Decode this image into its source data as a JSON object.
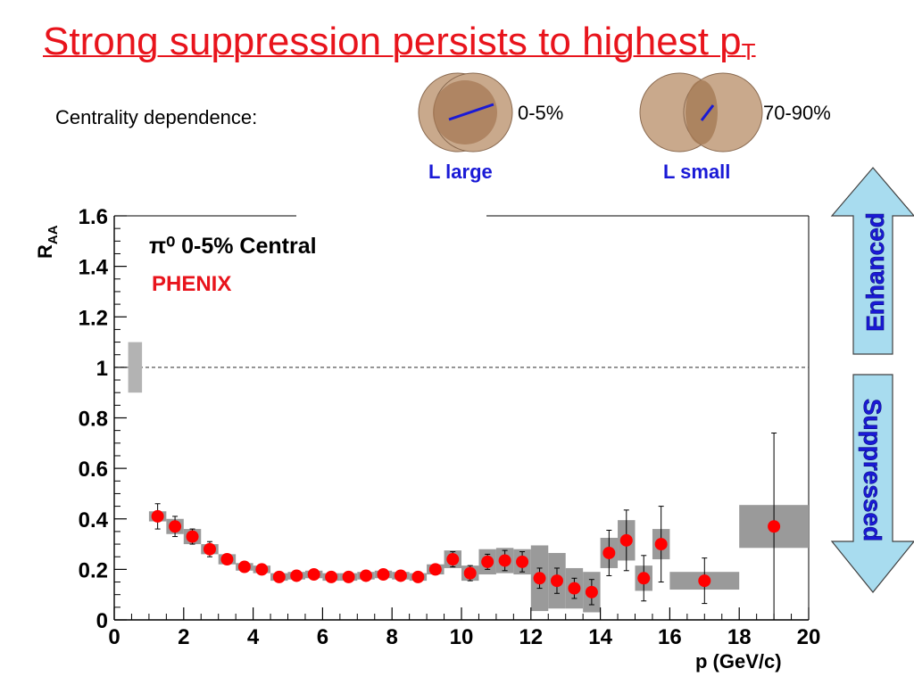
{
  "slide": {
    "title": "Strong suppression persists to highest p",
    "title_sub": "T",
    "centrality_label": "Centrality dependence:",
    "central_pct": "0-5%",
    "peripheral_pct": "70-90%",
    "central_L": "L large",
    "peripheral_L": "L small",
    "arrow_up_label": "Enhanced",
    "arrow_down_label": "Suppressed",
    "colors": {
      "title": "#e8141c",
      "nucleus_fill": "#c9a98c",
      "overlap_fill": "#a57a55",
      "path_line": "#1a1ad6",
      "arrow_fill": "#a8dcef",
      "arrow_text": "#1a1ad6"
    }
  },
  "chart_data": {
    "type": "scatter",
    "title": "",
    "annotation_species": "π⁰ 0-5% Central",
    "annotation_experiment": "PHENIX",
    "xlabel": "p (GeV/c)",
    "ylabel": "R_AA",
    "xlim": [
      0,
      20
    ],
    "ylim": [
      0,
      1.6
    ],
    "x_ticks": [
      "0",
      "2",
      "4",
      "6",
      "8",
      "10",
      "12",
      "14",
      "16",
      "18",
      "20"
    ],
    "y_ticks": [
      "0",
      "0.2",
      "0.4",
      "0.6",
      "0.8",
      "1",
      "1.2",
      "1.4",
      "1.6"
    ],
    "reference_line": 1,
    "normalization_box": {
      "x": [
        0.4,
        0.8
      ],
      "y": [
        0.9,
        1.1
      ]
    },
    "series": [
      {
        "marker_color": "#ff0000",
        "points": [
          {
            "x": 1.25,
            "y": 0.41,
            "err": 0.05,
            "sys": 0.02,
            "x_lo": 1.0,
            "x_hi": 1.5
          },
          {
            "x": 1.75,
            "y": 0.37,
            "err": 0.04,
            "sys": 0.03,
            "x_lo": 1.5,
            "x_hi": 2.0
          },
          {
            "x": 2.25,
            "y": 0.33,
            "err": 0.03,
            "sys": 0.03,
            "x_lo": 2.0,
            "x_hi": 2.5
          },
          {
            "x": 2.75,
            "y": 0.28,
            "err": 0.03,
            "sys": 0.02,
            "x_lo": 2.5,
            "x_hi": 3.0
          },
          {
            "x": 3.25,
            "y": 0.24,
            "err": 0.02,
            "sys": 0.02,
            "x_lo": 3.0,
            "x_hi": 3.5
          },
          {
            "x": 3.75,
            "y": 0.21,
            "err": 0.01,
            "sys": 0.015,
            "x_lo": 3.5,
            "x_hi": 4.0
          },
          {
            "x": 4.25,
            "y": 0.2,
            "err": 0.01,
            "sys": 0.015,
            "x_lo": 4.0,
            "x_hi": 4.5
          },
          {
            "x": 4.75,
            "y": 0.17,
            "err": 0.01,
            "sys": 0.015,
            "x_lo": 4.5,
            "x_hi": 5.0
          },
          {
            "x": 5.25,
            "y": 0.175,
            "err": 0.01,
            "sys": 0.015,
            "x_lo": 5.0,
            "x_hi": 5.5
          },
          {
            "x": 5.75,
            "y": 0.18,
            "err": 0.01,
            "sys": 0.015,
            "x_lo": 5.5,
            "x_hi": 6.0
          },
          {
            "x": 6.25,
            "y": 0.17,
            "err": 0.01,
            "sys": 0.015,
            "x_lo": 6.0,
            "x_hi": 6.5
          },
          {
            "x": 6.75,
            "y": 0.17,
            "err": 0.01,
            "sys": 0.015,
            "x_lo": 6.5,
            "x_hi": 7.0
          },
          {
            "x": 7.25,
            "y": 0.175,
            "err": 0.01,
            "sys": 0.015,
            "x_lo": 7.0,
            "x_hi": 7.5
          },
          {
            "x": 7.75,
            "y": 0.18,
            "err": 0.01,
            "sys": 0.015,
            "x_lo": 7.5,
            "x_hi": 8.0
          },
          {
            "x": 8.25,
            "y": 0.175,
            "err": 0.01,
            "sys": 0.015,
            "x_lo": 8.0,
            "x_hi": 8.5
          },
          {
            "x": 8.75,
            "y": 0.17,
            "err": 0.01,
            "sys": 0.015,
            "x_lo": 8.5,
            "x_hi": 9.0
          },
          {
            "x": 9.25,
            "y": 0.2,
            "err": 0.02,
            "sys": 0.02,
            "x_lo": 9.0,
            "x_hi": 9.5
          },
          {
            "x": 9.75,
            "y": 0.24,
            "err": 0.03,
            "sys": 0.035,
            "x_lo": 9.5,
            "x_hi": 10.0
          },
          {
            "x": 10.25,
            "y": 0.185,
            "err": 0.03,
            "sys": 0.03,
            "x_lo": 10.0,
            "x_hi": 10.5
          },
          {
            "x": 10.75,
            "y": 0.23,
            "err": 0.03,
            "sys": 0.05,
            "x_lo": 10.5,
            "x_hi": 11.0
          },
          {
            "x": 11.25,
            "y": 0.235,
            "err": 0.04,
            "sys": 0.05,
            "x_lo": 11.0,
            "x_hi": 11.5
          },
          {
            "x": 11.75,
            "y": 0.23,
            "err": 0.04,
            "sys": 0.05,
            "x_lo": 11.5,
            "x_hi": 12.0
          },
          {
            "x": 12.25,
            "y": 0.165,
            "err": 0.04,
            "sys": 0.13,
            "x_lo": 12.0,
            "x_hi": 12.5
          },
          {
            "x": 12.75,
            "y": 0.155,
            "err": 0.05,
            "sys": 0.11,
            "x_lo": 12.5,
            "x_hi": 13.0
          },
          {
            "x": 13.25,
            "y": 0.125,
            "err": 0.04,
            "sys": 0.08,
            "x_lo": 13.0,
            "x_hi": 13.5
          },
          {
            "x": 13.75,
            "y": 0.11,
            "err": 0.05,
            "sys": 0.08,
            "x_lo": 13.5,
            "x_hi": 14.0
          },
          {
            "x": 14.25,
            "y": 0.265,
            "err": 0.09,
            "sys": 0.06,
            "x_lo": 14.0,
            "x_hi": 14.5
          },
          {
            "x": 14.75,
            "y": 0.315,
            "err": 0.12,
            "sys": 0.08,
            "x_lo": 14.5,
            "x_hi": 15.0
          },
          {
            "x": 15.25,
            "y": 0.165,
            "err": 0.09,
            "sys": 0.05,
            "x_lo": 15.0,
            "x_hi": 15.5
          },
          {
            "x": 15.75,
            "y": 0.3,
            "err": 0.15,
            "sys": 0.06,
            "x_lo": 15.5,
            "x_hi": 16.0
          },
          {
            "x": 17.0,
            "y": 0.155,
            "err": 0.09,
            "sys": 0.035,
            "x_lo": 16.0,
            "x_hi": 18.0
          },
          {
            "x": 19.0,
            "y": 0.37,
            "err": 0.37,
            "sys": 0.085,
            "x_lo": 18.0,
            "x_hi": 20.0
          }
        ]
      }
    ]
  }
}
